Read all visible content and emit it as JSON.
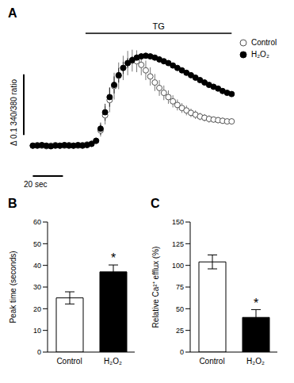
{
  "chart_data": [
    {
      "type": "line",
      "title": "A",
      "tick_labels": false,
      "legend": "upper right",
      "xlim": [
        -6,
        135
      ],
      "ylim": [
        -0.05,
        0.185
      ],
      "x": [
        0,
        3,
        6,
        9,
        12,
        15,
        18,
        21,
        24,
        27,
        30,
        33,
        36,
        39,
        42,
        45,
        48,
        51,
        54,
        57,
        60,
        63,
        66,
        69,
        72,
        75,
        78,
        81,
        84,
        87,
        90,
        93,
        96,
        99,
        102,
        105,
        108,
        111,
        114,
        117,
        120,
        123,
        126,
        129,
        132
      ],
      "series": [
        {
          "name": "Control",
          "color": "#555555",
          "marker": "open_circle",
          "line_style": "none",
          "values": [
            0,
            0.001,
            0,
            -0.001,
            0,
            0.001,
            0,
            0,
            0.001,
            0,
            0,
            0.001,
            0.002,
            0.003,
            0.008,
            0.025,
            0.05,
            0.075,
            0.098,
            0.115,
            0.128,
            0.136,
            0.14,
            0.139,
            0.133,
            0.124,
            0.114,
            0.104,
            0.095,
            0.087,
            0.08,
            0.073,
            0.067,
            0.062,
            0.058,
            0.054,
            0.051,
            0.048,
            0.046,
            0.044,
            0.043,
            0.042,
            0.041,
            0.04,
            0.04
          ],
          "errors": [
            0.003,
            0.003,
            0.003,
            0.003,
            0.003,
            0.003,
            0.003,
            0.003,
            0.003,
            0.003,
            0.003,
            0.003,
            0.003,
            0.003,
            0.005,
            0.01,
            0.015,
            0.02,
            0.022,
            0.022,
            0.02,
            0.02,
            0.018,
            0.018,
            0.017,
            0.016,
            0.015,
            0.014,
            0.013,
            0.012,
            0.011,
            0.01,
            0.009,
            0.008,
            0.008,
            0.007,
            0.007,
            0.006,
            0.006,
            0.006,
            0.005,
            0.005,
            0.005,
            0.005,
            0.005
          ]
        },
        {
          "name": "H₂O₂",
          "color": "#000000",
          "marker": "circle",
          "line_style": "none",
          "values": [
            0,
            0,
            0.001,
            0,
            -0.001,
            0,
            0,
            0.001,
            0,
            0,
            0.001,
            0,
            0.001,
            0.003,
            0.008,
            0.028,
            0.055,
            0.08,
            0.1,
            0.116,
            0.128,
            0.136,
            0.141,
            0.145,
            0.147,
            0.148,
            0.147,
            0.145,
            0.142,
            0.139,
            0.136,
            0.132,
            0.128,
            0.124,
            0.12,
            0.116,
            0.112,
            0.108,
            0.104,
            0.1,
            0.097,
            0.094,
            0.09,
            0.087,
            0.085
          ],
          "errors": [
            0.002,
            0.002,
            0.002,
            0.002,
            0.002,
            0.002,
            0.002,
            0.002,
            0.002,
            0.002,
            0.002,
            0.002,
            0.002,
            0.002,
            0.004,
            0.01,
            0.014,
            0.016,
            0.014,
            0.012,
            0.01,
            0.008,
            0.006,
            0.005,
            0.005,
            0.004,
            0.003,
            0.003,
            0.003,
            0.003,
            0.003,
            0.003,
            0.003,
            0.003,
            0.003,
            0.003,
            0.003,
            0.003,
            0.003,
            0.003,
            0.003,
            0.003,
            0.003,
            0.003,
            0.003
          ]
        }
      ],
      "annotations": [
        {
          "text": "TG",
          "start": 35,
          "end": 132
        }
      ],
      "scale_bars": [
        {
          "label": "Δ 0.1 340/380 ratio",
          "axis": "y",
          "value": 0.1
        },
        {
          "label": "20 sec",
          "axis": "x",
          "value": 20
        }
      ]
    },
    {
      "type": "bar",
      "title": "B",
      "categories": [
        "Control",
        "H₂O₂"
      ],
      "values": [
        25,
        37
      ],
      "errors": [
        2.8,
        3.2
      ],
      "colors": [
        "#ffffff",
        "#000000"
      ],
      "ylim": [
        0,
        60
      ],
      "yticks": [
        0,
        10,
        20,
        30,
        40,
        50,
        60
      ],
      "y_label": "Peak time (seconds)",
      "annotations": [
        {
          "text": "*",
          "category": "H₂O₂"
        }
      ]
    },
    {
      "type": "bar",
      "title": "C",
      "categories": [
        "Control",
        "H₂O₂"
      ],
      "values": [
        104,
        40
      ],
      "errors": [
        8,
        9
      ],
      "colors": [
        "#ffffff",
        "#000000"
      ],
      "ylim": [
        0,
        150
      ],
      "yticks": [
        0,
        25,
        50,
        75,
        100,
        125,
        150
      ],
      "y_label": "Relative Ca²⁺ efflux (%)",
      "annotations": [
        {
          "text": "*",
          "category": "H₂O₂"
        }
      ]
    }
  ]
}
